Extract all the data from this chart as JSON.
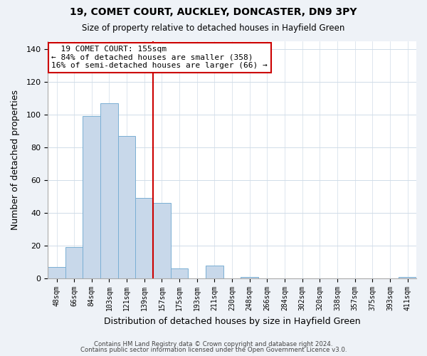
{
  "title": "19, COMET COURT, AUCKLEY, DONCASTER, DN9 3PY",
  "subtitle": "Size of property relative to detached houses in Hayfield Green",
  "xlabel": "Distribution of detached houses by size in Hayfield Green",
  "ylabel": "Number of detached properties",
  "footer_line1": "Contains HM Land Registry data © Crown copyright and database right 2024.",
  "footer_line2": "Contains public sector information licensed under the Open Government Licence v3.0.",
  "bin_labels": [
    "48sqm",
    "66sqm",
    "84sqm",
    "103sqm",
    "121sqm",
    "139sqm",
    "157sqm",
    "175sqm",
    "193sqm",
    "211sqm",
    "230sqm",
    "248sqm",
    "266sqm",
    "284sqm",
    "302sqm",
    "320sqm",
    "338sqm",
    "357sqm",
    "375sqm",
    "393sqm",
    "411sqm"
  ],
  "bar_heights": [
    7,
    19,
    99,
    107,
    87,
    49,
    46,
    6,
    0,
    8,
    0,
    1,
    0,
    0,
    0,
    0,
    0,
    0,
    0,
    0,
    1
  ],
  "bar_color": "#c8d8ea",
  "bar_edge_color": "#7aafd4",
  "annotation_title": "19 COMET COURT: 155sqm",
  "annotation_line1": "← 84% of detached houses are smaller (358)",
  "annotation_line2": "16% of semi-detached houses are larger (66) →",
  "annotation_box_edge_color": "#cc0000",
  "vertical_line_color": "#cc0000",
  "ylim": [
    0,
    145
  ],
  "yticks": [
    0,
    20,
    40,
    60,
    80,
    100,
    120,
    140
  ],
  "background_color": "#eef2f7",
  "plot_background_color": "#ffffff",
  "grid_color": "#d0dce8"
}
